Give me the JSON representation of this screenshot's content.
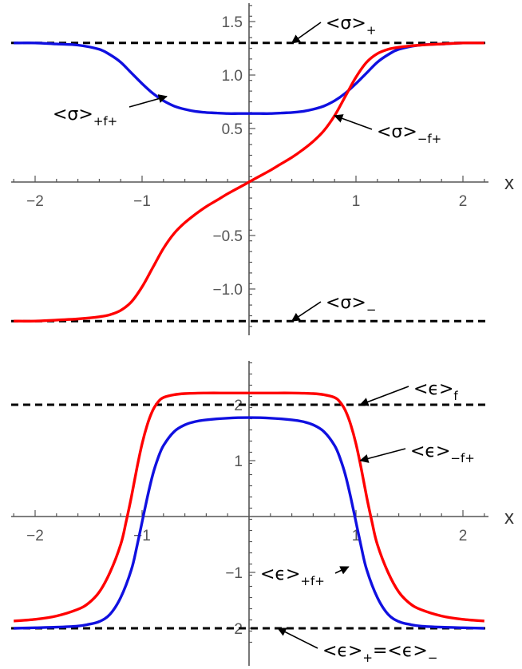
{
  "chart_data": [
    {
      "type": "line",
      "xlabel": "x",
      "ylabel": "",
      "xlim": [
        -2.2,
        2.2
      ],
      "ylim": [
        -1.35,
        1.65
      ],
      "xticks": [
        -2,
        -1,
        1,
        2
      ],
      "xtick_labels": [
        "−2",
        "−1",
        "1",
        "2"
      ],
      "yticks": [
        1.5,
        1.0,
        0.5,
        -0.5,
        -1.0
      ],
      "ytick_labels": [
        "1.5",
        "1.0",
        "0.5",
        "−0.5",
        "−1.0"
      ],
      "series": [
        {
          "color": "#1010e0",
          "x": [
            -2.2,
            -2.0,
            -1.8,
            -1.6,
            -1.4,
            -1.3,
            -1.2,
            -1.1,
            -1.0,
            -0.9,
            -0.8,
            -0.7,
            -0.6,
            -0.5,
            -0.4,
            -0.3,
            -0.2,
            -0.1,
            0.0,
            0.1,
            0.2,
            0.3,
            0.4,
            0.5,
            0.6,
            0.7,
            0.8,
            0.9,
            1.0,
            1.1,
            1.2,
            1.3,
            1.4,
            1.6,
            1.8,
            2.0,
            2.2
          ],
          "y": [
            1.3,
            1.3,
            1.29,
            1.28,
            1.24,
            1.19,
            1.12,
            1.02,
            0.92,
            0.83,
            0.76,
            0.71,
            0.68,
            0.66,
            0.65,
            0.645,
            0.64,
            0.64,
            0.64,
            0.64,
            0.64,
            0.645,
            0.65,
            0.66,
            0.68,
            0.71,
            0.76,
            0.83,
            0.92,
            1.02,
            1.12,
            1.19,
            1.24,
            1.28,
            1.29,
            1.3,
            1.3
          ]
        },
        {
          "color": "#ff0000",
          "x": [
            -2.2,
            -2.0,
            -1.8,
            -1.6,
            -1.4,
            -1.3,
            -1.2,
            -1.1,
            -1.0,
            -0.9,
            -0.8,
            -0.7,
            -0.6,
            -0.5,
            -0.4,
            -0.3,
            -0.2,
            -0.1,
            0.0,
            0.1,
            0.2,
            0.3,
            0.4,
            0.5,
            0.6,
            0.7,
            0.8,
            0.9,
            1.0,
            1.1,
            1.2,
            1.3,
            1.4,
            1.6,
            1.8,
            2.0,
            2.2
          ],
          "y": [
            -1.3,
            -1.3,
            -1.29,
            -1.28,
            -1.26,
            -1.24,
            -1.2,
            -1.12,
            -0.98,
            -0.8,
            -0.62,
            -0.48,
            -0.38,
            -0.3,
            -0.23,
            -0.17,
            -0.11,
            -0.055,
            0.0,
            0.055,
            0.11,
            0.17,
            0.23,
            0.3,
            0.38,
            0.48,
            0.62,
            0.8,
            0.98,
            1.12,
            1.2,
            1.24,
            1.26,
            1.28,
            1.29,
            1.3,
            1.3
          ]
        },
        {
          "color": "#000000",
          "dashed": true,
          "x": [
            -2.2,
            2.2
          ],
          "y": [
            1.3,
            1.3
          ]
        },
        {
          "color": "#000000",
          "dashed": true,
          "x": [
            -2.2,
            2.2
          ],
          "y": [
            -1.3,
            -1.3
          ]
        }
      ],
      "annotations": [
        {
          "id": "sigma_plus",
          "label": "<σ>",
          "sub": "+",
          "point": [
            0.4,
            1.3
          ]
        },
        {
          "id": "sigma_pfp",
          "label": "<σ>",
          "sub": "+f+",
          "point": [
            -0.77,
            0.8
          ]
        },
        {
          "id": "sigma_mfp",
          "label": "<σ>",
          "sub": "−f+",
          "point": [
            0.8,
            0.62
          ]
        },
        {
          "id": "sigma_minus",
          "label": "<σ>",
          "sub": "−",
          "point": [
            0.4,
            -1.3
          ]
        }
      ]
    },
    {
      "type": "line",
      "xlabel": "x",
      "ylabel": "",
      "xlim": [
        -2.2,
        2.2
      ],
      "ylim": [
        -2.25,
        2.8
      ],
      "xticks": [
        -2,
        -1,
        1,
        2
      ],
      "xtick_labels": [
        "−2",
        "−1",
        "1",
        "2"
      ],
      "yticks": [
        2,
        1,
        -1,
        -2
      ],
      "ytick_labels": [
        "2",
        "1",
        "−1",
        "−2"
      ],
      "series": [
        {
          "color": "#ff0000",
          "x": [
            -2.2,
            -2.0,
            -1.8,
            -1.6,
            -1.5,
            -1.4,
            -1.3,
            -1.2,
            -1.15,
            -1.1,
            -1.05,
            -1.0,
            -0.95,
            -0.9,
            -0.85,
            -0.8,
            -0.7,
            -0.6,
            -0.4,
            -0.2,
            0.0,
            0.2,
            0.4,
            0.6,
            0.7,
            0.8,
            0.85,
            0.9,
            0.95,
            1.0,
            1.05,
            1.1,
            1.15,
            1.2,
            1.3,
            1.4,
            1.5,
            1.6,
            1.8,
            2.0,
            2.2
          ],
          "y": [
            -1.87,
            -1.84,
            -1.78,
            -1.66,
            -1.55,
            -1.35,
            -1.0,
            -0.5,
            -0.1,
            0.35,
            0.85,
            1.3,
            1.65,
            1.9,
            2.05,
            2.13,
            2.18,
            2.2,
            2.21,
            2.21,
            2.21,
            2.21,
            2.21,
            2.2,
            2.18,
            2.13,
            2.05,
            1.9,
            1.65,
            1.3,
            0.85,
            0.35,
            -0.1,
            -0.5,
            -1.0,
            -1.35,
            -1.55,
            -1.66,
            -1.78,
            -1.84,
            -1.87
          ]
        },
        {
          "color": "#1010e0",
          "x": [
            -2.2,
            -2.0,
            -1.8,
            -1.6,
            -1.5,
            -1.4,
            -1.3,
            -1.2,
            -1.1,
            -1.05,
            -1.0,
            -0.95,
            -0.9,
            -0.85,
            -0.8,
            -0.7,
            -0.6,
            -0.5,
            -0.4,
            -0.2,
            0.0,
            0.2,
            0.4,
            0.5,
            0.6,
            0.7,
            0.8,
            0.85,
            0.9,
            0.95,
            1.0,
            1.05,
            1.1,
            1.2,
            1.3,
            1.4,
            1.5,
            1.6,
            1.8,
            2.0,
            2.2
          ],
          "y": [
            -2.0,
            -1.99,
            -1.98,
            -1.96,
            -1.93,
            -1.88,
            -1.75,
            -1.45,
            -0.95,
            -0.55,
            -0.1,
            0.35,
            0.75,
            1.05,
            1.27,
            1.52,
            1.64,
            1.7,
            1.73,
            1.76,
            1.77,
            1.76,
            1.73,
            1.7,
            1.64,
            1.52,
            1.27,
            1.05,
            0.75,
            0.35,
            -0.1,
            -0.55,
            -0.95,
            -1.45,
            -1.75,
            -1.88,
            -1.93,
            -1.96,
            -1.98,
            -1.99,
            -2.0
          ]
        },
        {
          "color": "#000000",
          "dashed": true,
          "x": [
            -2.2,
            2.2
          ],
          "y": [
            2.0,
            2.0
          ]
        },
        {
          "color": "#000000",
          "dashed": true,
          "x": [
            -2.2,
            2.2
          ],
          "y": [
            -2.0,
            -2.0
          ]
        }
      ],
      "annotations": [
        {
          "id": "eps_f",
          "label": "<ϵ>",
          "sub": "f",
          "point": [
            1.04,
            2.0
          ]
        },
        {
          "id": "eps_mfp",
          "label": "<ϵ>",
          "sub": "−f+",
          "point": [
            1.04,
            1.0
          ]
        },
        {
          "id": "eps_pfp",
          "label": "<ϵ>",
          "sub": "+f+",
          "point": [
            0.93,
            -0.9
          ]
        },
        {
          "id": "eps_pm",
          "label": "<ϵ>",
          "sub": "+",
          "label2": "=<ϵ>",
          "sub2": "−",
          "point": [
            0.27,
            -2.0
          ]
        }
      ]
    }
  ]
}
